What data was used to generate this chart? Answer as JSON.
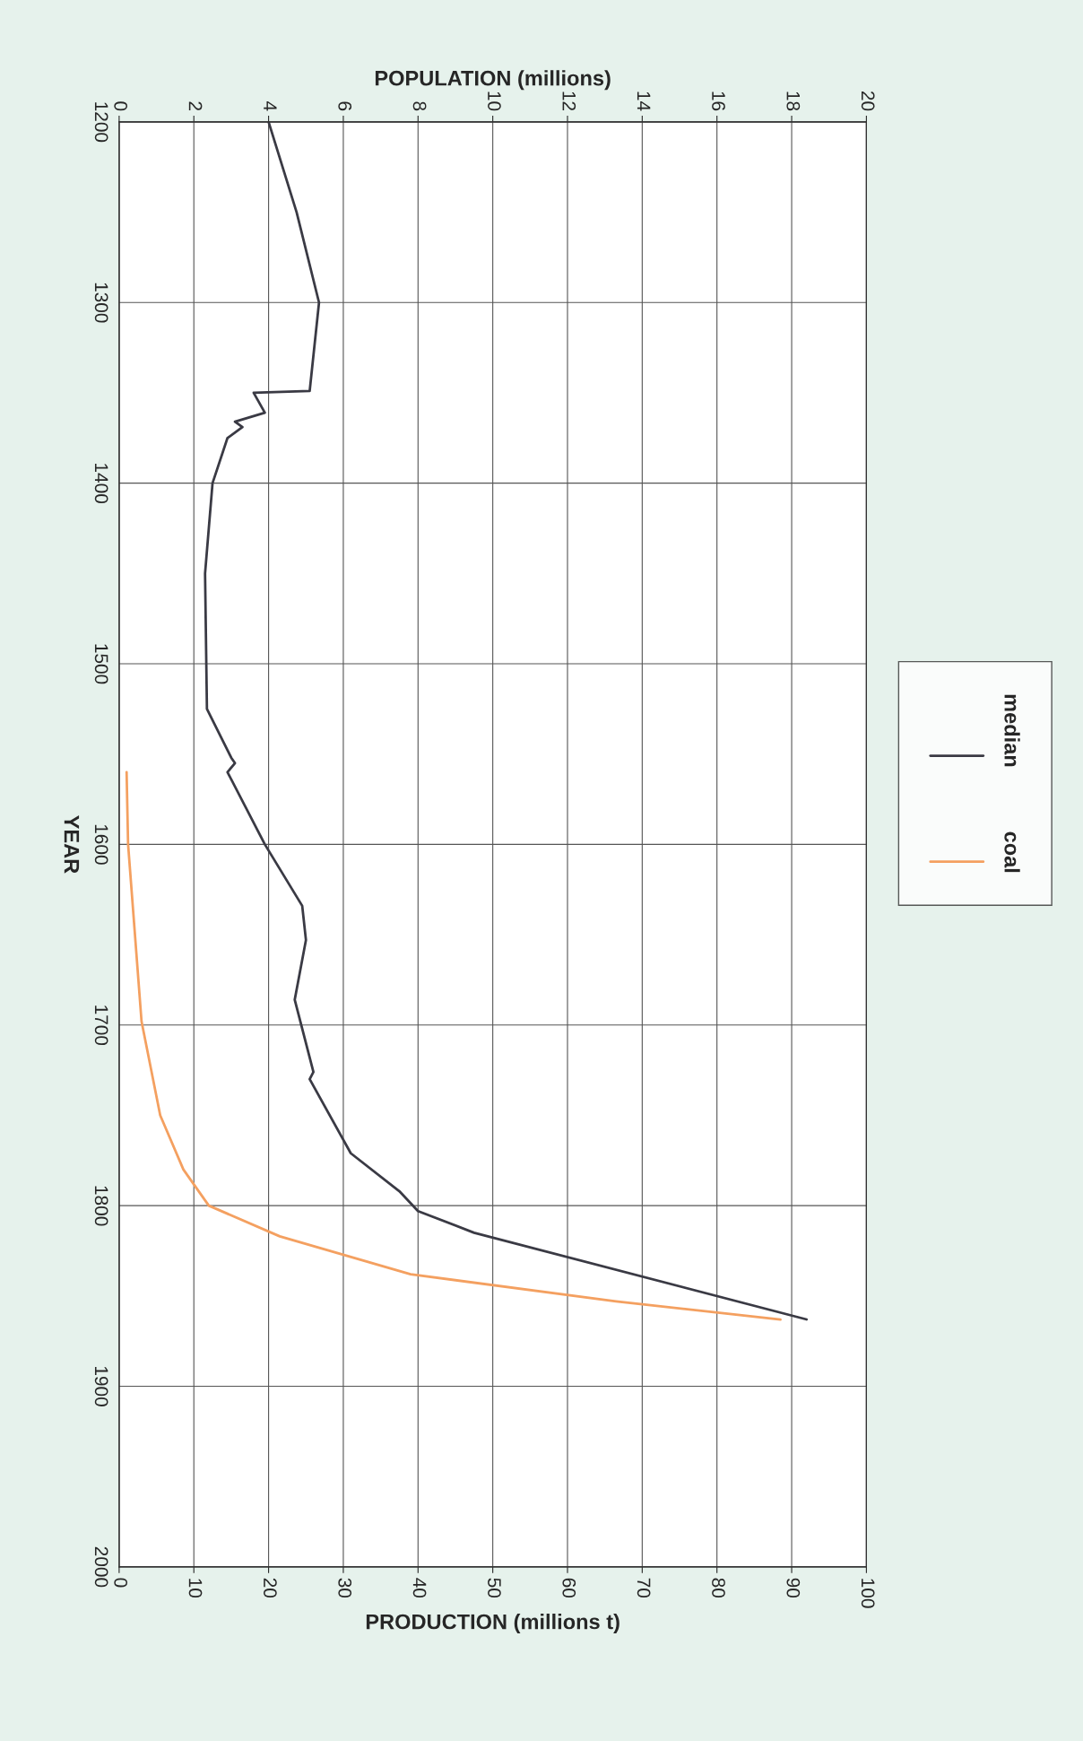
{
  "chart_data": {
    "type": "line",
    "orientation": "horizontal",
    "ylabel": "YEAR",
    "xlabel": "PRODUCTION (millions t)",
    "x2label": "POPULATION (millions)",
    "ylim": [
      2000,
      1200
    ],
    "yticks": [
      1200,
      1300,
      1400,
      1500,
      1600,
      1700,
      1800,
      1900,
      2000
    ],
    "xlim": [
      0,
      100
    ],
    "xticks": [
      0,
      10,
      20,
      30,
      40,
      50,
      60,
      70,
      80,
      90,
      100
    ],
    "x2lim": [
      0,
      20
    ],
    "x2ticks": [
      0,
      2,
      4,
      6,
      8,
      10,
      12,
      14,
      16,
      18,
      20
    ],
    "grid": true,
    "legend": "right",
    "series": [
      {
        "name": "median",
        "color": "#3a3a44",
        "axis": "x2",
        "x": [
          1200,
          1250,
          1300,
          1349,
          1350,
          1361,
          1366,
          1369,
          1375,
          1400,
          1450,
          1525,
          1552,
          1555,
          1560,
          1600,
          1634,
          1653,
          1686,
          1726,
          1730,
          1771,
          1792,
          1803,
          1815,
          1863
        ],
        "values": [
          4.0,
          4.75,
          5.35,
          5.1,
          3.6,
          3.9,
          3.1,
          3.3,
          2.9,
          2.5,
          2.3,
          2.35,
          3.0,
          3.1,
          2.9,
          3.9,
          4.9,
          5.0,
          4.7,
          5.2,
          5.1,
          6.2,
          7.5,
          8.0,
          9.5,
          18.4
        ]
      },
      {
        "name": "coal",
        "color": "#f4a060",
        "x": [
          1560,
          1600,
          1698,
          1750,
          1780,
          1800,
          1817,
          1838,
          1853,
          1863
        ],
        "values": [
          1,
          1.2,
          3,
          5.5,
          8.6,
          12,
          21.5,
          39,
          66.5,
          88.5
        ]
      }
    ]
  }
}
